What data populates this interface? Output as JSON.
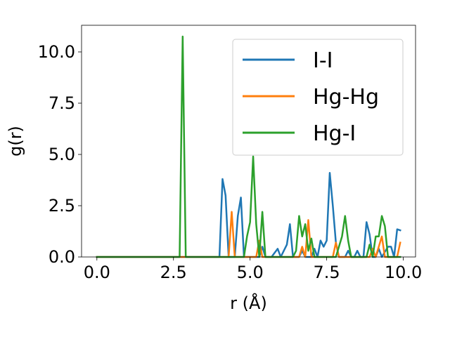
{
  "chart_data": {
    "type": "line",
    "title": "",
    "xlabel": "r (Å)",
    "ylabel": "g(r)",
    "xlim": [
      -0.5,
      10.4
    ],
    "ylim": [
      0,
      11.3
    ],
    "x_ticks": [
      0.0,
      2.5,
      5.0,
      7.5,
      10.0
    ],
    "x_tick_labels": [
      "0.0",
      "2.5",
      "5.0",
      "7.5",
      "10.0"
    ],
    "y_ticks": [
      0.0,
      2.5,
      5.0,
      7.5,
      10.0
    ],
    "y_tick_labels": [
      "0.0",
      "2.5",
      "5.0",
      "7.5",
      "10.0"
    ],
    "grid": false,
    "legend_position": "top-right",
    "series": [
      {
        "name": "I-I",
        "color": "#1f77b4",
        "points": [
          [
            0.0,
            0
          ],
          [
            3.9,
            0
          ],
          [
            4.0,
            0
          ],
          [
            4.1,
            3.8
          ],
          [
            4.2,
            3.0
          ],
          [
            4.3,
            0
          ],
          [
            4.5,
            0
          ],
          [
            4.6,
            2.0
          ],
          [
            4.7,
            2.9
          ],
          [
            4.8,
            0
          ],
          [
            5.3,
            0
          ],
          [
            5.4,
            0.5
          ],
          [
            5.5,
            0
          ],
          [
            5.7,
            0
          ],
          [
            5.8,
            0.2
          ],
          [
            5.9,
            0.4
          ],
          [
            6.0,
            0
          ],
          [
            6.2,
            0.6
          ],
          [
            6.3,
            1.6
          ],
          [
            6.4,
            0
          ],
          [
            6.6,
            0
          ],
          [
            6.7,
            0.3
          ],
          [
            6.8,
            0
          ],
          [
            7.0,
            0
          ],
          [
            7.1,
            0.4
          ],
          [
            7.2,
            0
          ],
          [
            7.3,
            0.8
          ],
          [
            7.4,
            0.5
          ],
          [
            7.5,
            0.8
          ],
          [
            7.6,
            4.1
          ],
          [
            7.7,
            2.5
          ],
          [
            7.8,
            0.7
          ],
          [
            7.9,
            0
          ],
          [
            8.1,
            0
          ],
          [
            8.2,
            0.3
          ],
          [
            8.3,
            0
          ],
          [
            8.4,
            0
          ],
          [
            8.5,
            0.3
          ],
          [
            8.6,
            0
          ],
          [
            8.7,
            0
          ],
          [
            8.8,
            1.7
          ],
          [
            8.9,
            1.1
          ],
          [
            9.0,
            0
          ],
          [
            9.1,
            0
          ],
          [
            9.2,
            0.4
          ],
          [
            9.3,
            0
          ],
          [
            9.5,
            0.5
          ],
          [
            9.6,
            0.5
          ],
          [
            9.7,
            0
          ],
          [
            9.8,
            1.35
          ],
          [
            9.9,
            1.3
          ]
        ]
      },
      {
        "name": "Hg-Hg",
        "color": "#ff7f0e",
        "points": [
          [
            0.0,
            0
          ],
          [
            4.2,
            0
          ],
          [
            4.3,
            0
          ],
          [
            4.4,
            2.2
          ],
          [
            4.5,
            0
          ],
          [
            5.2,
            0
          ],
          [
            5.3,
            0.8
          ],
          [
            5.4,
            0
          ],
          [
            6.6,
            0
          ],
          [
            6.7,
            0.5
          ],
          [
            6.8,
            0
          ],
          [
            6.9,
            1.8
          ],
          [
            7.0,
            0
          ],
          [
            7.7,
            0
          ],
          [
            7.8,
            0.7
          ],
          [
            7.9,
            0
          ],
          [
            8.9,
            0
          ],
          [
            9.0,
            0.4
          ],
          [
            9.1,
            0
          ],
          [
            9.2,
            0.5
          ],
          [
            9.3,
            1.0
          ],
          [
            9.4,
            0
          ],
          [
            9.8,
            0
          ],
          [
            9.9,
            0.7
          ]
        ]
      },
      {
        "name": "Hg-I",
        "color": "#2ca02c",
        "points": [
          [
            0.0,
            0
          ],
          [
            2.7,
            0
          ],
          [
            2.8,
            10.75
          ],
          [
            2.9,
            0
          ],
          [
            4.8,
            0
          ],
          [
            4.9,
            1.0
          ],
          [
            5.0,
            1.7
          ],
          [
            5.1,
            4.9
          ],
          [
            5.2,
            1.6
          ],
          [
            5.3,
            0
          ],
          [
            5.4,
            2.2
          ],
          [
            5.5,
            0
          ],
          [
            6.4,
            0
          ],
          [
            6.5,
            0.3
          ],
          [
            6.6,
            2.0
          ],
          [
            6.7,
            1.0
          ],
          [
            6.8,
            1.6
          ],
          [
            6.9,
            0.3
          ],
          [
            7.0,
            0.9
          ],
          [
            7.1,
            0
          ],
          [
            7.8,
            0
          ],
          [
            7.9,
            0.5
          ],
          [
            8.0,
            1.0
          ],
          [
            8.1,
            2.0
          ],
          [
            8.2,
            0.8
          ],
          [
            8.3,
            0
          ],
          [
            8.8,
            0
          ],
          [
            8.9,
            0.6
          ],
          [
            9.0,
            0
          ],
          [
            9.1,
            1.0
          ],
          [
            9.2,
            1.0
          ],
          [
            9.3,
            2.0
          ],
          [
            9.4,
            1.5
          ],
          [
            9.5,
            0
          ],
          [
            9.9,
            0
          ]
        ]
      }
    ]
  }
}
